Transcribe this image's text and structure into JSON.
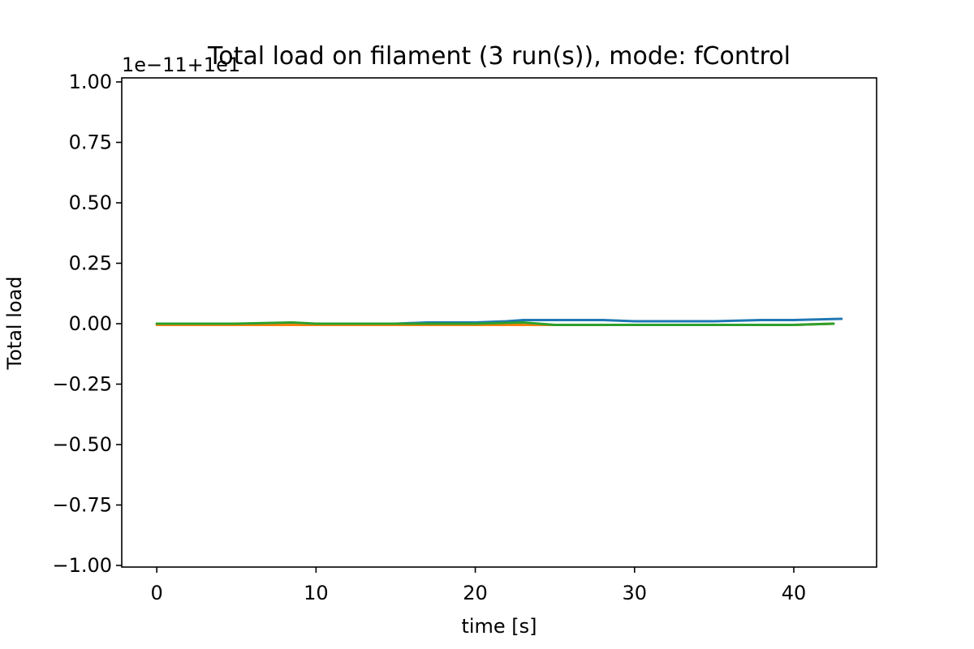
{
  "chart_data": {
    "type": "line",
    "title": "Total load on filament (3 run(s)), mode: fControl",
    "xlabel": "time [s]",
    "ylabel": "Total load",
    "offset_text": "1e−11+1e1",
    "xlim": [
      -2.2,
      45.2
    ],
    "ylim": [
      -1.0,
      1.0
    ],
    "xticks": [
      0,
      10,
      20,
      30,
      40
    ],
    "xtick_labels": [
      "0",
      "10",
      "20",
      "30",
      "40"
    ],
    "yticks": [
      1.0,
      0.75,
      0.5,
      0.25,
      0.0,
      -0.25,
      -0.5,
      -0.75,
      -1.0
    ],
    "ytick_labels": [
      "1.00",
      "0.75",
      "0.50",
      "0.25",
      "0.00",
      "−0.25",
      "−0.50",
      "−0.75",
      "−1.00"
    ],
    "grid": false,
    "series": [
      {
        "color": "#1f77b4",
        "x": [
          0,
          5,
          10,
          15,
          17,
          20,
          22,
          23,
          25,
          28,
          30,
          35,
          38,
          40,
          43
        ],
        "y": [
          0.0,
          0.0,
          0.0,
          0.0,
          0.005,
          0.005,
          0.01,
          0.015,
          0.015,
          0.015,
          0.01,
          0.01,
          0.015,
          0.015,
          0.02
        ]
      },
      {
        "color": "#ff7f0e",
        "x": [
          0,
          5,
          10,
          15,
          20,
          25,
          30,
          35,
          40,
          42.5
        ],
        "y": [
          -0.005,
          -0.005,
          -0.005,
          -0.005,
          -0.005,
          -0.005,
          -0.005,
          -0.005,
          -0.005,
          0.0
        ]
      },
      {
        "color": "#2ca02c",
        "x": [
          0,
          5,
          8.5,
          10,
          12,
          15,
          20,
          23,
          25,
          30,
          35,
          39,
          40,
          42.5
        ],
        "y": [
          0.0,
          0.0,
          0.005,
          0.0,
          0.0,
          0.0,
          0.0,
          0.005,
          -0.005,
          -0.005,
          -0.005,
          -0.005,
          -0.005,
          0.0
        ]
      }
    ]
  }
}
